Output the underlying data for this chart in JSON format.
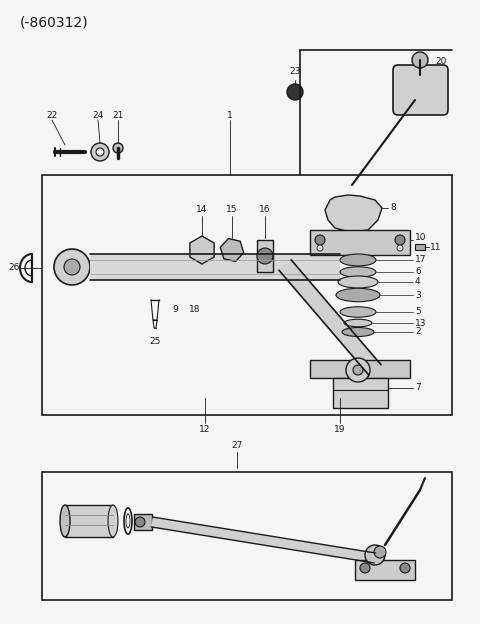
{
  "title": "(-860312)",
  "bg_color": "#f5f5f5",
  "lc": "#1a1a1a",
  "fig_w": 4.8,
  "fig_h": 6.24,
  "dpi": 100
}
